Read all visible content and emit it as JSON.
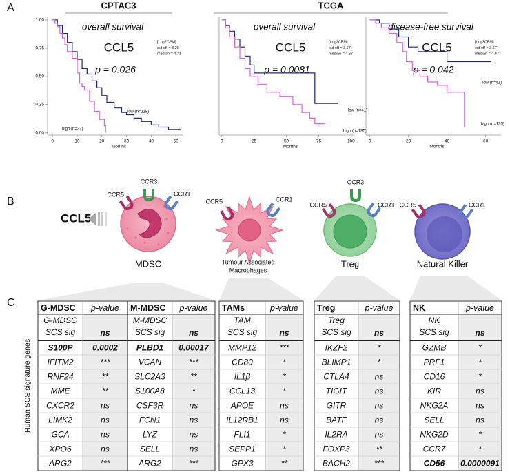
{
  "panel_labels": [
    "A",
    "B",
    "C"
  ],
  "groups": [
    "CPTAC3",
    "TCGA"
  ],
  "chart_data": [
    {
      "type": "line",
      "step": true,
      "title": "overall survival",
      "subtitle": "CCL5",
      "annotation": "p = 0.026",
      "info": [
        "[Log2CPM]",
        "cut off = 3.28",
        "median = 4.31"
      ],
      "xlabel": "Months",
      "xlim": [
        -2,
        53
      ],
      "ylim": [
        -0.02,
        1.03
      ],
      "xticks": [
        0,
        10,
        20,
        30,
        40,
        50
      ],
      "yticks": [
        {
          "value": 0,
          "label": "0.00"
        },
        {
          "value": 0.25,
          "label": "0.25"
        },
        {
          "value": 0.5,
          "label": "0.50"
        },
        {
          "value": 0.75,
          "label": "0.75"
        },
        {
          "value": 1,
          "label": "1.00"
        }
      ],
      "series": [
        {
          "name": "low (n=118)",
          "color": "#1f2a7a",
          "x": [
            0,
            2,
            4,
            6,
            8,
            10,
            12,
            14,
            16,
            18,
            20,
            22,
            25,
            28,
            30,
            33,
            36,
            40,
            43,
            47,
            52
          ],
          "values": [
            1,
            0.95,
            0.88,
            0.8,
            0.72,
            0.65,
            0.57,
            0.52,
            0.46,
            0.4,
            0.33,
            0.27,
            0.22,
            0.18,
            0.16,
            0.13,
            0.1,
            0.07,
            0.05,
            0.03,
            0.02
          ]
        },
        {
          "name": "high (n=32)",
          "color": "#e05ce6",
          "x": [
            0,
            1,
            2,
            3,
            4,
            5,
            6,
            8,
            10,
            11,
            12,
            13,
            15,
            17,
            19,
            21,
            21.5
          ],
          "values": [
            1,
            0.97,
            0.94,
            0.88,
            0.84,
            0.78,
            0.72,
            0.66,
            0.53,
            0.44,
            0.41,
            0.38,
            0.28,
            0.19,
            0.12,
            0.06,
            0
          ]
        }
      ]
    },
    {
      "type": "line",
      "step": true,
      "title": "overall survival",
      "subtitle": "CCL5",
      "annotation": "p = 0.0081",
      "info": [
        "[Log2CPM]",
        "cut off = 3.67",
        "median = 4.67"
      ],
      "xlabel": "Months",
      "xlim": [
        -2,
        103
      ],
      "ylim": [
        -0.02,
        1.03
      ],
      "xticks": [
        0,
        25,
        50,
        75,
        100
      ],
      "series": [
        {
          "name": "low (n=41)",
          "color": "#1f2a7a",
          "x": [
            0,
            3,
            6,
            10,
            14,
            18,
            22,
            25,
            70,
            72,
            90
          ],
          "values": [
            1,
            0.95,
            0.9,
            0.83,
            0.76,
            0.68,
            0.6,
            0.53,
            0.53,
            0.26,
            0.26
          ]
        },
        {
          "name": "high (n=135)",
          "color": "#e05ce6",
          "x": [
            0,
            3,
            6,
            10,
            14,
            18,
            22,
            28,
            35,
            45,
            55,
            62,
            68,
            72,
            80
          ],
          "values": [
            1,
            0.93,
            0.85,
            0.76,
            0.66,
            0.57,
            0.5,
            0.43,
            0.36,
            0.32,
            0.25,
            0.18,
            0.13,
            0.08,
            0.08
          ]
        }
      ]
    },
    {
      "type": "line",
      "step": true,
      "title": "disease-free survival",
      "subtitle": "CCL5",
      "annotation": "p = 0.042",
      "info": [
        "[Log2CPM]",
        "cut off = 3.67",
        "median = 4.67"
      ],
      "xlabel": "Months",
      "xlim": [
        -2,
        68
      ],
      "ylim": [
        -0.02,
        1.03
      ],
      "xticks": [
        0,
        20,
        40,
        60
      ],
      "series": [
        {
          "name": "low (n=41)",
          "color": "#1f2a7a",
          "x": [
            0,
            5,
            10,
            15,
            20,
            25,
            38,
            40,
            63
          ],
          "values": [
            1,
            0.97,
            0.92,
            0.85,
            0.76,
            0.72,
            0.72,
            0.63,
            0.63
          ]
        },
        {
          "name": "high (n=135)",
          "color": "#e05ce6",
          "x": [
            0,
            3,
            6,
            10,
            14,
            17,
            19,
            22,
            26,
            30,
            35,
            40,
            48,
            49
          ],
          "values": [
            1,
            0.97,
            0.93,
            0.88,
            0.8,
            0.72,
            0.63,
            0.55,
            0.5,
            0.45,
            0.42,
            0.36,
            0.36,
            0.05
          ]
        }
      ]
    }
  ],
  "ligand": "CCL5",
  "cells": [
    {
      "label": [
        "MDSC"
      ],
      "receptors": [
        "CCR5",
        "CCR3",
        "CCR1"
      ]
    },
    {
      "label": [
        "Tumour Associated",
        "Macrophages"
      ],
      "receptors": [
        "CCR5",
        "CCR1"
      ]
    },
    {
      "label": [
        "Treg"
      ],
      "receptors": [
        "CCR5",
        "CCR3",
        "CCR1"
      ]
    },
    {
      "label": [
        "Natural Killer"
      ],
      "receptors": [
        "CCR5",
        "CCR1"
      ]
    }
  ],
  "table_axis_label": "Human SCS signature genes",
  "tables": [
    {
      "header": [
        "G-MDSC",
        "p-value",
        "M-MDSC",
        "p-value"
      ],
      "sig": [
        [
          "G-MDSC",
          "SCS sig"
        ],
        [
          "ns"
        ],
        [
          "M-MDSC",
          "SCS sig"
        ],
        [
          "ns"
        ]
      ],
      "rows": [
        {
          "cells": [
            "S100P",
            "0.0002",
            "PLBD1",
            "0.00017"
          ],
          "color": "#e3231c",
          "bold": true
        },
        {
          "cells": [
            "IFITM2",
            "***",
            "VCAN",
            "***"
          ],
          "color": "#e3231c"
        },
        {
          "cells": [
            "RNF24",
            "**",
            "SLC2A3",
            "**"
          ],
          "color": "#e3231c"
        },
        {
          "cells": [
            "MME",
            "**",
            "S100A8",
            "*"
          ],
          "color": "#e3231c"
        },
        {
          "cells": [
            "CXCR2",
            "ns",
            "CSF3R",
            "ns"
          ],
          "color": "#111111"
        },
        {
          "cells": [
            "LIMK2",
            "ns",
            "FCN1",
            "ns"
          ],
          "color": "#111111"
        },
        {
          "cells": [
            "GCA",
            "ns",
            "LYZ",
            "ns"
          ],
          "color": "#111111"
        },
        {
          "cells": [
            "XPO6",
            "ns",
            "SELL",
            "ns"
          ],
          "color": "#111111"
        },
        {
          "cells": [
            "ARG2",
            "***",
            "ARG2",
            "***"
          ],
          "color": "#2a9d45"
        }
      ]
    },
    {
      "header": [
        "TAMs",
        "p-value"
      ],
      "sig": [
        [
          "TAM",
          "SCS sig"
        ],
        [
          "ns"
        ]
      ],
      "rows": [
        {
          "cells": [
            "MMP12",
            "***"
          ],
          "color": "#e3231c"
        },
        {
          "cells": [
            "CD80",
            "*"
          ],
          "color": "#e3231c"
        },
        {
          "cells": [
            "IL1β",
            "*"
          ],
          "color": "#e3231c"
        },
        {
          "cells": [
            "CCL13",
            "*"
          ],
          "color": "#e3231c"
        },
        {
          "cells": [
            "APOE",
            "ns"
          ],
          "color": "#111111"
        },
        {
          "cells": [
            "IL12RB1",
            "ns"
          ],
          "color": "#111111"
        },
        {
          "cells": [
            "FLI1",
            "*"
          ],
          "color": "#2a9d45"
        },
        {
          "cells": [
            "SEPP1",
            "*"
          ],
          "color": "#2a9d45"
        },
        {
          "cells": [
            "GPX3",
            "**"
          ],
          "color": "#2a9d45"
        }
      ]
    },
    {
      "header": [
        "Treg",
        "p-value"
      ],
      "sig": [
        [
          "Treg",
          "SCS sig"
        ],
        [
          "ns"
        ]
      ],
      "rows": [
        {
          "cells": [
            "IKZF2",
            "*"
          ],
          "color": "#e3231c"
        },
        {
          "cells": [
            "BLIMP1",
            "*"
          ],
          "color": "#e3231c"
        },
        {
          "cells": [
            "CTLA4",
            "ns"
          ],
          "color": "#111111"
        },
        {
          "cells": [
            "TIGIT",
            "ns"
          ],
          "color": "#111111"
        },
        {
          "cells": [
            "GITR",
            "ns"
          ],
          "color": "#111111"
        },
        {
          "cells": [
            "BATF",
            "ns"
          ],
          "color": "#111111"
        },
        {
          "cells": [
            "IL2RA",
            "ns"
          ],
          "color": "#111111"
        },
        {
          "cells": [
            "FOXP3",
            "**"
          ],
          "color": "#2a9d45"
        },
        {
          "cells": [
            "BACH2",
            "***"
          ],
          "color": "#2a9d45"
        }
      ]
    },
    {
      "header": [
        "NK",
        "p-value"
      ],
      "sig": [
        [
          "NK",
          "SCS sig"
        ],
        [
          "ns"
        ]
      ],
      "rows": [
        {
          "cells": [
            "GZMB",
            "*"
          ],
          "color": "#e3231c"
        },
        {
          "cells": [
            "PRF1",
            "*"
          ],
          "color": "#e3231c"
        },
        {
          "cells": [
            "CD16",
            "*"
          ],
          "color": "#e3231c"
        },
        {
          "cells": [
            "KIR",
            "ns"
          ],
          "color": "#111111"
        },
        {
          "cells": [
            "NKG2A",
            "ns"
          ],
          "color": "#111111"
        },
        {
          "cells": [
            "SELL",
            "ns"
          ],
          "color": "#111111"
        },
        {
          "cells": [
            "NKG2D",
            "*"
          ],
          "color": "#2a9d45"
        },
        {
          "cells": [
            "CCR7",
            "*"
          ],
          "color": "#2a9d45"
        },
        {
          "cells": [
            "CD56",
            "0.0000091"
          ],
          "color": "#2a9d45",
          "bold": true
        }
      ]
    }
  ]
}
